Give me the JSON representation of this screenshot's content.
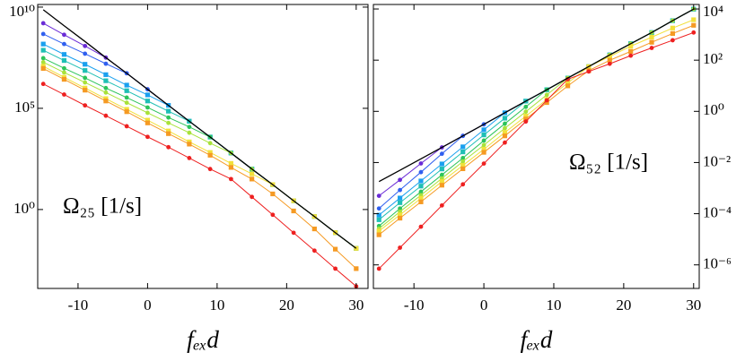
{
  "chart_data": [
    {
      "type": "line",
      "ylog": true,
      "ytick_side": "left",
      "xlabel": "fₑₓd",
      "annotation": "Ω₂₅ [1/s]",
      "x": [
        -15,
        -12,
        -9,
        -6,
        -3,
        0,
        3,
        6,
        9,
        12,
        15,
        18,
        21,
        24,
        27,
        30
      ],
      "xlim": [
        -15.8,
        31.7
      ],
      "xticks": [
        -10,
        0,
        10,
        20,
        30
      ],
      "ylim": [
        0.000126,
        13500000000
      ],
      "yticks": [
        {
          "value": 1,
          "label": "10⁰"
        },
        {
          "value": 100000,
          "label": "10⁵"
        },
        {
          "value": 10000000000,
          "label": "10¹⁰"
        }
      ],
      "series": [
        {
          "color": "#6a2bd6",
          "marker": "circle",
          "values": [
            1600000000.0,
            430000000.0,
            120000000.0,
            32000000.0,
            5400000.0,
            870000.0,
            140000.0,
            23000.0,
            3800.0,
            620,
            100,
            17,
            2.7,
            0.45,
            0.072,
            0.012
          ]
        },
        {
          "color": "#2f5fef",
          "marker": "circle",
          "values": [
            470000000.0,
            150000000.0,
            50000000.0,
            16000000.0,
            5400000.0,
            870000.0,
            140000.0,
            23000.0,
            3800.0,
            620,
            100,
            17,
            2.7,
            0.45,
            0.072,
            0.012
          ]
        },
        {
          "color": "#1aa0ef",
          "marker": "square",
          "values": [
            150000000.0,
            46000000.0,
            15000000.0,
            4600000.0,
            1400000.0,
            460000.0,
            140000.0,
            23000.0,
            3800.0,
            620,
            100,
            17,
            2.7,
            0.45,
            0.072,
            0.012
          ]
        },
        {
          "color": "#1fbfb5",
          "marker": "square",
          "values": [
            74000000.0,
            23000000.0,
            7400000.0,
            2300000.0,
            740000.0,
            230000.0,
            72000.0,
            23000.0,
            3800.0,
            620,
            100,
            17,
            2.7,
            0.45,
            0.072,
            0.012
          ]
        },
        {
          "color": "#2cc45a",
          "marker": "circle",
          "values": [
            30000000.0,
            9500000.0,
            3200000.0,
            1000000.0,
            340000.0,
            110000.0,
            35000.0,
            12000.0,
            3800.0,
            620,
            100,
            17,
            2.7,
            0.45,
            0.072,
            0.012
          ]
        },
        {
          "color": "#a8e23a",
          "marker": "circle",
          "values": [
            19000000.0,
            5900000.0,
            1900000.0,
            600000.0,
            190000.0,
            60000.0,
            19000.0,
            6200.0,
            1900.0,
            620,
            100,
            17,
            2.7,
            0.45,
            0.072,
            0.012
          ]
        },
        {
          "color": "#f2e03a",
          "marker": "square",
          "values": [
            12000000.0,
            3400000.0,
            1000000.0,
            300000.0,
            89000.0,
            26000.0,
            7600.0,
            2200.0,
            660,
            190,
            58,
            17,
            2.7,
            0.45,
            0.072,
            0.012
          ]
        },
        {
          "color": "#f59a23",
          "marker": "square",
          "values": [
            9300000.0,
            2700000.0,
            790000.0,
            230000.0,
            68000.0,
            19000.0,
            5600.0,
            1700.0,
            480,
            120,
            32,
            5.9,
            0.85,
            0.11,
            0.011,
            0.0012
          ]
        },
        {
          "color": "#ee2020",
          "marker": "circle",
          "values": [
            1600000.0,
            480000.0,
            140000.0,
            43000.0,
            13000.0,
            3900.0,
            1200.0,
            350,
            100,
            32,
            4.2,
            0.55,
            0.071,
            0.0093,
            0.0012,
            0.00016
          ]
        },
        {
          "color": "#000000",
          "marker": "none",
          "values": [
            7400000000.0,
            1200000000.0,
            200000000.0,
            32000000.0,
            5400000.0,
            870000.0,
            140000.0,
            23000.0,
            3800.0,
            620,
            100,
            17,
            2.7,
            0.45,
            0.072,
            0.012
          ]
        }
      ]
    },
    {
      "type": "line",
      "ylog": true,
      "ytick_side": "right",
      "xlabel": "fₑₓd",
      "annotation": "Ω₅₂ [1/s]",
      "x": [
        -15,
        -12,
        -9,
        -6,
        -3,
        0,
        3,
        6,
        9,
        12,
        15,
        18,
        21,
        24,
        27,
        30
      ],
      "xlim": [
        -15.8,
        30.8
      ],
      "xticks": [
        -10,
        0,
        10,
        20,
        30
      ],
      "ylim": [
        1.2e-07,
        15000
      ],
      "yticks": [
        {
          "value": 1e-06,
          "label": "10⁻⁶"
        },
        {
          "value": 0.0001,
          "label": "10⁻⁴"
        },
        {
          "value": 0.01,
          "label": "10⁻²"
        },
        {
          "value": 1,
          "label": "10⁰"
        },
        {
          "value": 100,
          "label": "10²"
        },
        {
          "value": 10000,
          "label": "10⁴"
        }
      ],
      "series": [
        {
          "color": "#6a2bd6",
          "marker": "circle",
          "values": [
            0.0005,
            0.0021,
            0.0092,
            0.039,
            0.11,
            0.31,
            0.88,
            2.5,
            7.0,
            20,
            56,
            160,
            440,
            1200,
            3500,
            9900
          ]
        },
        {
          "color": "#2f5fef",
          "marker": "circle",
          "values": [
            0.00016,
            0.00084,
            0.0042,
            0.022,
            0.11,
            0.31,
            0.88,
            2.5,
            7.0,
            20,
            56,
            160,
            440,
            1200,
            3500,
            9900
          ]
        },
        {
          "color": "#1aa0ef",
          "marker": "square",
          "values": [
            8.8e-05,
            0.00041,
            0.0019,
            0.0088,
            0.041,
            0.19,
            0.88,
            2.5,
            7.0,
            20,
            56,
            160,
            440,
            1200,
            3500,
            9900
          ]
        },
        {
          "color": "#1fbfb5",
          "marker": "square",
          "values": [
            5.8e-05,
            0.00027,
            0.0012,
            0.0056,
            0.026,
            0.12,
            0.54,
            2.5,
            7.0,
            20,
            56,
            160,
            440,
            1200,
            3500,
            9900
          ]
        },
        {
          "color": "#2cc45a",
          "marker": "circle",
          "values": [
            3.3e-05,
            0.00016,
            0.00072,
            0.0033,
            0.015,
            0.072,
            0.33,
            1.5,
            7.0,
            20,
            56,
            160,
            440,
            1200,
            3500,
            9900
          ]
        },
        {
          "color": "#a8e23a",
          "marker": "circle",
          "values": [
            2.6e-05,
            0.00012,
            0.00053,
            0.0024,
            0.011,
            0.048,
            0.22,
            0.97,
            4.4,
            20,
            56,
            160,
            440,
            1200,
            3500,
            9900
          ]
        },
        {
          "color": "#f2e03a",
          "marker": "square",
          "values": [
            2.1e-05,
            9e-05,
            0.0004,
            0.0018,
            0.0077,
            0.033,
            0.15,
            0.65,
            2.9,
            13,
            56,
            140,
            350,
            790,
            1800,
            3800
          ]
        },
        {
          "color": "#f59a23",
          "marker": "square",
          "values": [
            1.5e-05,
            6.7e-05,
            0.00029,
            0.0013,
            0.0057,
            0.025,
            0.11,
            0.5,
            2.2,
            9.9,
            39,
            99,
            220,
            500,
            1100,
            2300
          ]
        },
        {
          "color": "#ee2020",
          "marker": "circle",
          "values": [
            7.1e-07,
            4.7e-06,
            3.1e-05,
            0.00021,
            0.0014,
            0.0091,
            0.06,
            0.4,
            2.7,
            18,
            36,
            72,
            150,
            300,
            600,
            1200
          ]
        },
        {
          "color": "#000000",
          "marker": "none",
          "values": [
            0.0018,
            0.005,
            0.014,
            0.039,
            0.11,
            0.31,
            0.88,
            2.5,
            7.0,
            20,
            56,
            160,
            440,
            1200,
            3500,
            9900
          ]
        }
      ]
    }
  ]
}
